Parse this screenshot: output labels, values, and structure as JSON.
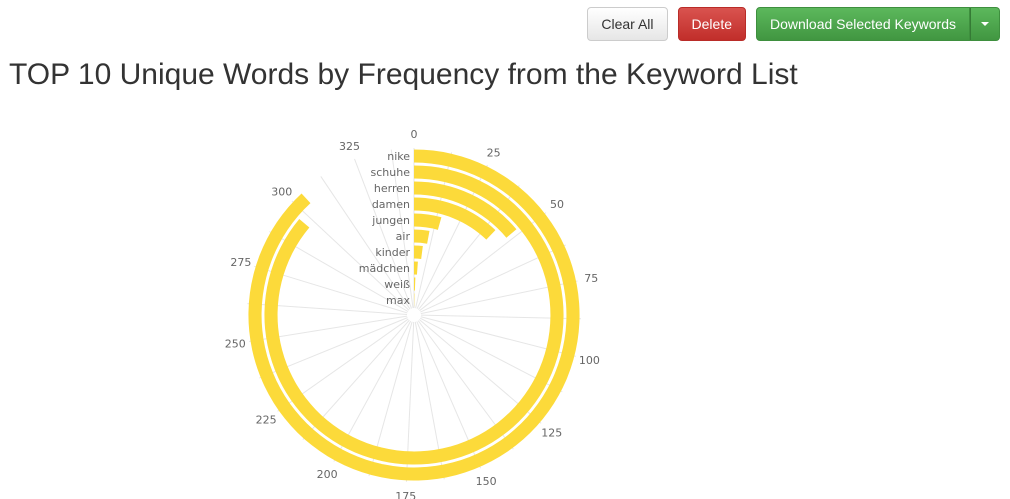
{
  "toolbar": {
    "clear_label": "Clear All",
    "delete_label": "Delete",
    "download_label": "Download Selected Keywords",
    "dropdown_icon": "caret-down-icon"
  },
  "page": {
    "title": "TOP 10 Unique Words by Frequency from the Keyword List"
  },
  "chart_data": {
    "type": "bar",
    "polar": true,
    "title": "TOP 10 Unique Words by Frequency from the Keyword List",
    "categories": [
      "nike",
      "schuhe",
      "herren",
      "damen",
      "jungen",
      "air",
      "kinder",
      "mädchen",
      "weiß",
      "max"
    ],
    "values": [
      304,
      297,
      48,
      42,
      15,
      10,
      7,
      4,
      2,
      1
    ],
    "angular_axis": {
      "min": 0,
      "max": 345,
      "ticks": [
        0,
        25,
        50,
        75,
        100,
        125,
        150,
        175,
        200,
        225,
        250,
        275,
        300,
        325
      ]
    },
    "bar_color": "#fcda3a",
    "grid": true,
    "legend": "none"
  }
}
